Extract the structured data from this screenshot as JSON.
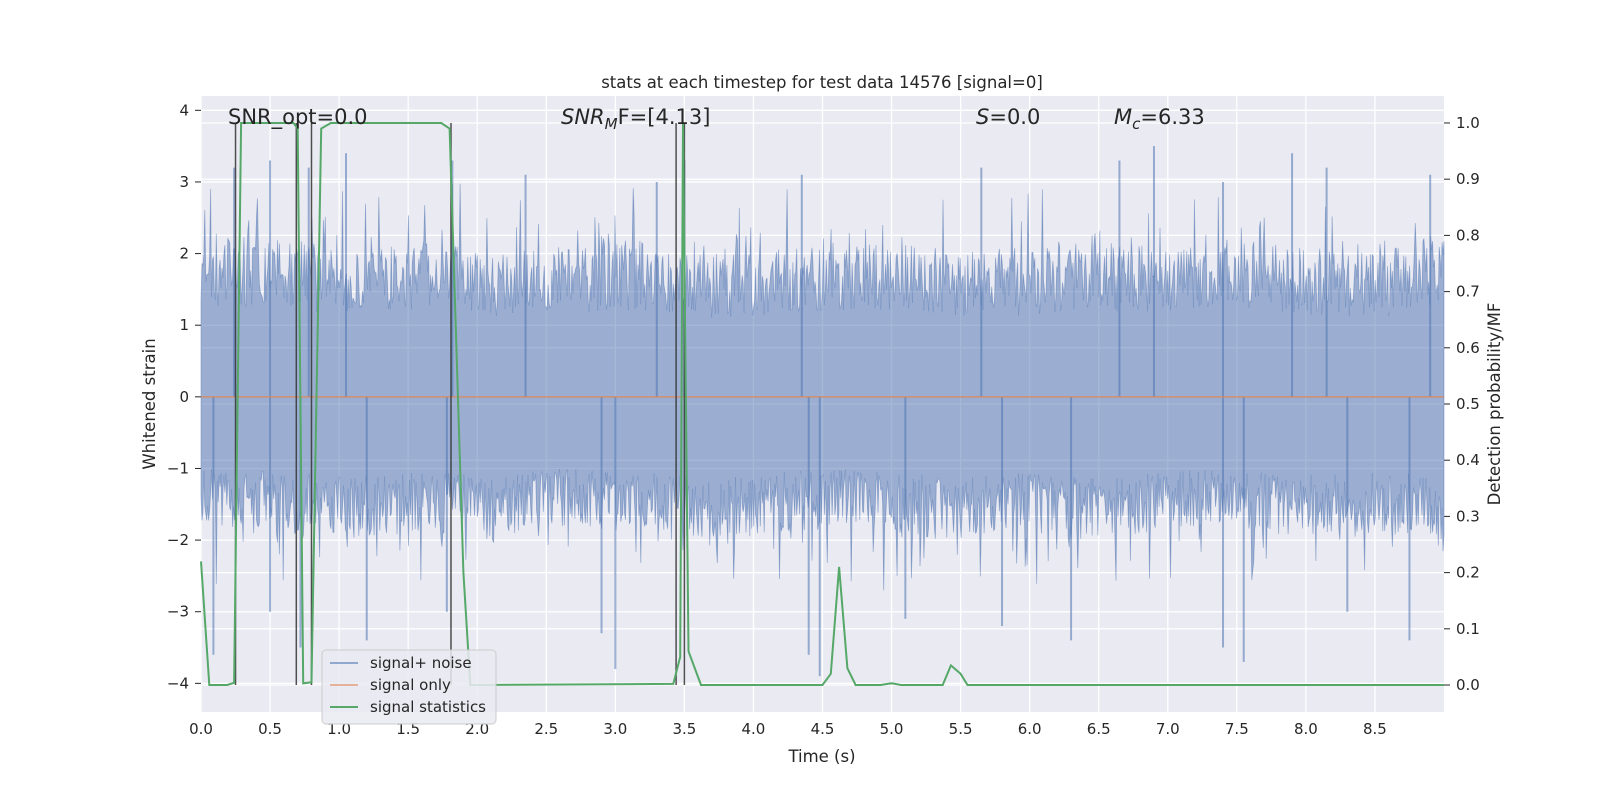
{
  "chart_data": {
    "type": "line",
    "title": "stats at each timestep for test data 14576 [signal=0]",
    "xlabel": "Time (s)",
    "ylabel": "Whitened strain",
    "y2label": "Detection probability/MF",
    "xlim": [
      0.0,
      9.0
    ],
    "ylim": [
      -4.4,
      4.2
    ],
    "y2lim": [
      -0.048,
      1.048
    ],
    "xticks": [
      "0.0",
      "0.5",
      "1.0",
      "1.5",
      "2.0",
      "2.5",
      "3.0",
      "3.5",
      "4.0",
      "4.5",
      "5.0",
      "5.5",
      "6.0",
      "6.5",
      "7.0",
      "7.5",
      "8.0",
      "8.5"
    ],
    "yticks": [
      "4",
      "3",
      "2",
      "1",
      "0",
      "−1",
      "−2",
      "−3",
      "−4"
    ],
    "y2ticks": [
      "1.0",
      "0.9",
      "0.8",
      "0.7",
      "0.6",
      "0.5",
      "0.4",
      "0.3",
      "0.2",
      "0.1",
      "0.0"
    ],
    "grid": true,
    "legend_position": "lower-left",
    "legend": [
      "signal+ noise",
      "signal only",
      "signal statistics"
    ],
    "series": [
      {
        "name": "signal+ noise",
        "axis": "left",
        "description": "whitened noisy strain, values roughly within -3.9 to 3.9",
        "envelope_upper": [
          2.3,
          2.2,
          2.1,
          2.2,
          2.0,
          2.1,
          2.2,
          2.0,
          2.1,
          2.2,
          2.1,
          2.0,
          2.2,
          2.1,
          2.2,
          2.1,
          2.0,
          2.3
        ],
        "envelope_lower": [
          -1.8,
          -1.9,
          -2.0,
          -1.9,
          -2.0,
          -1.8,
          -1.9,
          -2.0,
          -1.9,
          -1.8,
          -2.0,
          -1.9,
          -2.0,
          -1.9,
          -1.8,
          -2.0,
          -1.9,
          -2.0
        ],
        "peaks_x": [
          0.24,
          0.5,
          0.78,
          1.05,
          1.82,
          2.35,
          3.3,
          3.5,
          4.35,
          5.65,
          6.65,
          6.9,
          7.4,
          7.9,
          8.15,
          8.9
        ],
        "peaks_y": [
          3.2,
          3.3,
          3.2,
          3.4,
          3.3,
          3.1,
          3.0,
          3.3,
          3.1,
          3.2,
          3.3,
          3.5,
          3.0,
          3.4,
          3.2,
          3.1
        ],
        "troughs_x": [
          0.09,
          0.5,
          0.72,
          1.2,
          1.78,
          2.9,
          3.0,
          4.4,
          4.48,
          5.1,
          5.8,
          6.3,
          7.4,
          7.55,
          8.3,
          8.75
        ],
        "troughs_y": [
          -3.6,
          -3.0,
          -3.5,
          -3.4,
          -3.0,
          -3.3,
          -3.8,
          -3.6,
          -3.9,
          -3.1,
          -3.2,
          -3.4,
          -3.5,
          -3.7,
          -3.0,
          -3.4
        ]
      },
      {
        "name": "signal only",
        "axis": "left",
        "x": [
          0.0,
          9.0
        ],
        "y": [
          0.0,
          0.0
        ]
      },
      {
        "name": "signal statistics",
        "axis": "right",
        "x": [
          0.0,
          0.06,
          0.19,
          0.24,
          0.29,
          0.67,
          0.7,
          0.74,
          0.8,
          0.87,
          0.94,
          1.74,
          1.8,
          1.9,
          1.95,
          3.42,
          3.47,
          3.49,
          3.53,
          3.62,
          4.5,
          4.56,
          4.62,
          4.68,
          4.74,
          4.92,
          5.0,
          5.07,
          5.37,
          5.43,
          5.5,
          5.55,
          9.0
        ],
        "y": [
          0.22,
          0.0,
          0.0,
          0.004,
          1.0,
          1.0,
          0.99,
          0.003,
          0.005,
          0.99,
          1.0,
          1.0,
          0.99,
          0.2,
          0.0,
          0.002,
          0.05,
          1.0,
          0.06,
          0.0,
          0.0,
          0.02,
          0.21,
          0.03,
          0.0,
          0.0,
          0.003,
          0.0,
          0.0,
          0.035,
          0.02,
          0.0,
          0.0
        ]
      }
    ],
    "markers_x": [
      0.25,
      0.69,
      0.8,
      1.81,
      3.44,
      3.5
    ],
    "annotations": [
      "SNR_opt=0.0",
      "SNR",
      "M",
      "F=[4.13]",
      "S",
      "=0.0",
      "M",
      "c",
      "=6.33"
    ]
  },
  "colors": {
    "noise": "#4c72b0",
    "signal_only": "#dd8452",
    "statistics": "#55a868",
    "markers": "#333333",
    "plot_background": "#eaeaf2",
    "grid": "#ffffff"
  }
}
